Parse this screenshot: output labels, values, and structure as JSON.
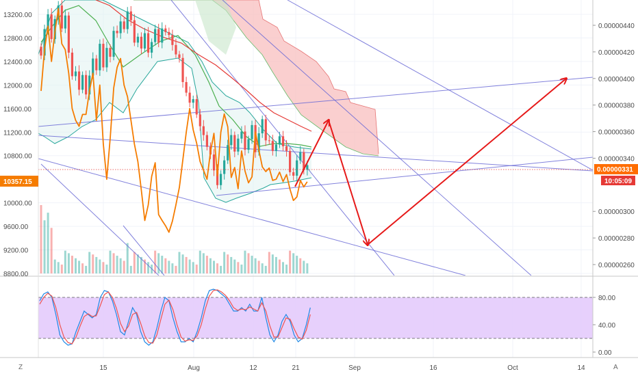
{
  "colors": {
    "up": "#26a69a",
    "down": "#ef5350",
    "orange": "#f57c00",
    "sma20": "#4caf50",
    "sma50": "#e53935",
    "bb": "#26a69a",
    "cloud_red": "#f8bbbb",
    "cloud_green": "#c8e6c9",
    "trend": "#6b6bd6",
    "arrow": "#e61919",
    "stoch_k": "#1e88e5",
    "stoch_d": "#ef5350",
    "stoch_band": "#e3c8fb",
    "price_badge": "#ff6d00",
    "price_badge_dark": "#f57c00",
    "timer_badge": "#e53935"
  },
  "corner": {
    "left_label": "Z",
    "right_label": "A"
  },
  "current_price": {
    "left_label": "10357.15",
    "right_label": "0.00000331",
    "countdown": "10:05:09"
  },
  "chart_data": [
    {
      "type": "candlestick",
      "title": "",
      "left_axis": {
        "ticks": [
          "13200.00",
          "12800.00",
          "12400.00",
          "12000.00",
          "11600.00",
          "11200.00",
          "10800.00",
          "10000.00",
          "9600.00",
          "9200.00",
          "8800.00"
        ],
        "range": [
          8800,
          13500
        ]
      },
      "right_axis": {
        "ticks": [
          "0.00000440",
          "0.00000420",
          "0.00000400",
          "0.00000380",
          "0.00000360",
          "0.00000340",
          "0.00000300",
          "0.00000280",
          "0.00000260"
        ],
        "range": [
          2.5e-06,
          4.48e-06
        ]
      },
      "x_axis": {
        "ticks": [
          "15",
          "Aug",
          "12",
          "21",
          "Sep",
          "16",
          "Oct",
          "14"
        ]
      },
      "candles_close": [
        12500,
        12950,
        13200,
        12780,
        13120,
        13350,
        12960,
        13180,
        12550,
        12150,
        12230,
        11920,
        12170,
        11840,
        12160,
        12450,
        12250,
        12700,
        12300,
        12630,
        12480,
        12920,
        12880,
        13080,
        12950,
        13250,
        13100,
        12720,
        12820,
        12620,
        12880,
        12550,
        12730,
        12950,
        12720,
        12960,
        12900,
        12850,
        12680,
        12520,
        12460,
        12050,
        11870,
        11700,
        11760,
        11500,
        11300,
        11150,
        10950,
        10820,
        10550,
        10300,
        10490,
        10720,
        10980,
        11150,
        10870,
        11090,
        11210,
        10900,
        11080,
        11320,
        10860,
        11180,
        11420,
        11060,
        11050,
        10880,
        10990,
        11130,
        10960,
        10880,
        10520,
        10460,
        10720,
        10860,
        10560,
        10640
      ],
      "series": [
        {
          "name": "",
          "values": [
            11900,
            12600,
            13000,
            12400,
            12900,
            13300,
            12700,
            12600,
            12200,
            11600,
            11400,
            11300,
            11500,
            11500,
            11900,
            12200,
            11400,
            12000,
            11000,
            10400,
            11100,
            11950,
            12300,
            12450,
            12000,
            11800,
            11400,
            11000,
            10700,
            10220,
            9700,
            9960,
            10450,
            10680,
            9800,
            9700,
            9610,
            9500,
            9690,
            9960,
            10260,
            10720,
            11200,
            11600,
            11240,
            11010,
            10700,
            10550,
            10400,
            10860,
            11180,
            10460,
            11200,
            11510,
            11290,
            10430,
            10600,
            10240,
            10880,
            10540,
            10340,
            10440,
            11200,
            10900,
            10610,
            10530,
            10590,
            10380,
            10400,
            10520,
            10360,
            10480,
            10230,
            10040,
            10100,
            10380,
            10270,
            10357
          ]
        }
      ],
      "volume_max": 9
    },
    {
      "type": "line",
      "title": "",
      "y_axis": {
        "ticks": [
          "80.00",
          "40.00",
          "0.00"
        ],
        "range": [
          -8,
          100
        ]
      },
      "overbought": 80,
      "oversold": 20,
      "series": [
        {
          "name": "",
          "values": [
            75,
            85,
            88,
            80,
            55,
            25,
            15,
            10,
            12,
            30,
            45,
            60,
            55,
            50,
            55,
            80,
            90,
            88,
            75,
            55,
            30,
            25,
            45,
            65,
            55,
            30,
            15,
            10,
            15,
            35,
            60,
            80,
            75,
            50,
            30,
            15,
            15,
            20,
            15,
            30,
            50,
            75,
            90,
            92,
            90,
            85,
            80,
            70,
            60,
            60,
            65,
            60,
            70,
            60,
            60,
            80,
            50,
            25,
            15,
            25,
            45,
            55,
            45,
            25,
            15,
            20,
            40,
            65
          ]
        },
        {
          "name": "",
          "values": [
            70,
            80,
            86,
            82,
            65,
            40,
            22,
            14,
            12,
            22,
            38,
            52,
            56,
            52,
            53,
            68,
            84,
            88,
            80,
            64,
            42,
            30,
            38,
            55,
            58,
            42,
            24,
            14,
            13,
            25,
            48,
            70,
            76,
            62,
            40,
            22,
            16,
            18,
            17,
            24,
            40,
            63,
            82,
            90,
            91,
            88,
            83,
            75,
            65,
            61,
            63,
            62,
            66,
            63,
            60,
            72,
            60,
            38,
            22,
            22,
            36,
            50,
            48,
            34,
            22,
            19,
            32,
            55
          ]
        }
      ]
    }
  ]
}
